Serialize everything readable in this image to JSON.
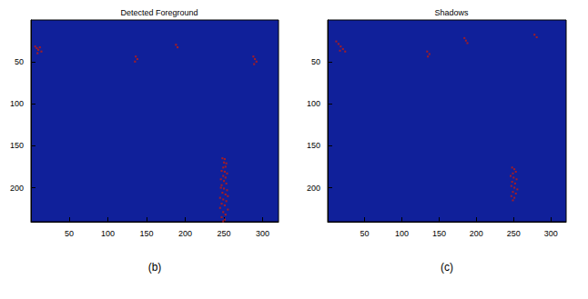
{
  "chart_data": [
    {
      "type": "heatmap",
      "title": "Detected Foreground",
      "xlabel": "(b)",
      "xlim": [
        0.5,
        320.5
      ],
      "ylim": [
        0.5,
        240.5
      ],
      "xticks": [
        50,
        100,
        150,
        200,
        250,
        300
      ],
      "yticks": [
        50,
        100,
        150,
        200
      ],
      "color": "#b01c1c",
      "cells": [
        [
          6,
          32
        ],
        [
          8,
          34
        ],
        [
          10,
          36
        ],
        [
          12,
          33
        ],
        [
          14,
          38
        ],
        [
          9,
          40
        ],
        [
          136,
          44
        ],
        [
          138,
          47
        ],
        [
          135,
          50
        ],
        [
          188,
          30
        ],
        [
          190,
          33
        ],
        [
          288,
          44
        ],
        [
          290,
          47
        ],
        [
          292,
          50
        ],
        [
          289,
          53
        ],
        [
          248,
          165
        ],
        [
          251,
          166
        ],
        [
          250,
          170
        ],
        [
          253,
          171
        ],
        [
          252,
          175
        ],
        [
          249,
          176
        ],
        [
          247,
          180
        ],
        [
          251,
          181
        ],
        [
          254,
          183
        ],
        [
          249,
          186
        ],
        [
          252,
          188
        ],
        [
          246,
          190
        ],
        [
          250,
          192
        ],
        [
          253,
          195
        ],
        [
          247,
          197
        ],
        [
          246,
          200
        ],
        [
          250,
          201
        ],
        [
          254,
          203
        ],
        [
          248,
          206
        ],
        [
          252,
          208
        ],
        [
          255,
          210
        ],
        [
          245,
          212
        ],
        [
          249,
          214
        ],
        [
          253,
          216
        ],
        [
          247,
          219
        ],
        [
          251,
          221
        ],
        [
          245,
          224
        ],
        [
          255,
          226
        ],
        [
          249,
          229
        ],
        [
          252,
          232
        ],
        [
          247,
          235
        ],
        [
          251,
          238
        ],
        [
          249,
          240
        ]
      ]
    },
    {
      "type": "heatmap",
      "title": "Shadows",
      "xlabel": "(c)",
      "xlim": [
        0.5,
        320.5
      ],
      "ylim": [
        0.5,
        240.5
      ],
      "xticks": [
        50,
        100,
        150,
        200,
        250,
        300
      ],
      "yticks": [
        50,
        100,
        150,
        200
      ],
      "color": "#b01c1c",
      "cells": [
        [
          12,
          26
        ],
        [
          15,
          29
        ],
        [
          18,
          32
        ],
        [
          21,
          35
        ],
        [
          24,
          38
        ],
        [
          17,
          37
        ],
        [
          134,
          38
        ],
        [
          137,
          41
        ],
        [
          135,
          44
        ],
        [
          184,
          22
        ],
        [
          186,
          25
        ],
        [
          188,
          28
        ],
        [
          278,
          18
        ],
        [
          281,
          21
        ],
        [
          248,
          176
        ],
        [
          251,
          178
        ],
        [
          253,
          181
        ],
        [
          249,
          183
        ],
        [
          246,
          186
        ],
        [
          250,
          188
        ],
        [
          254,
          190
        ],
        [
          248,
          193
        ],
        [
          252,
          195
        ],
        [
          247,
          198
        ],
        [
          251,
          200
        ],
        [
          255,
          202
        ],
        [
          249,
          205
        ],
        [
          253,
          207
        ],
        [
          247,
          210
        ],
        [
          251,
          212
        ],
        [
          249,
          215
        ]
      ]
    }
  ]
}
